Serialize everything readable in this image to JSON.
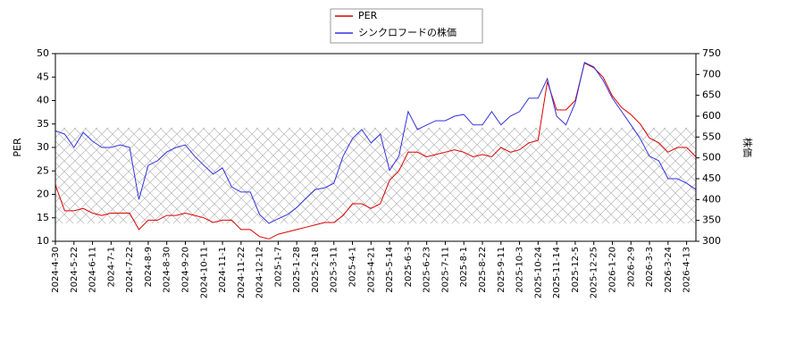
{
  "chart_data": {
    "type": "line",
    "x": [
      "2024-4-30",
      null,
      "2024-5-22",
      null,
      "2024-6-11",
      null,
      "2024-7-1",
      null,
      "2024-7-22",
      null,
      "2024-8-9",
      null,
      "2024-8-30",
      null,
      "2024-9-20",
      null,
      "2024-10-11",
      null,
      "2024-11-1",
      null,
      "2024-11-22",
      null,
      "2024-12-12",
      null,
      "2025-1-7",
      null,
      "2025-1-28",
      null,
      "2025-2-18",
      null,
      "2025-3-11",
      null,
      "2025-4-1",
      null,
      "2025-4-21",
      null,
      "2025-5-14",
      null,
      "2025-6-3",
      null,
      "2025-6-23",
      null,
      "2025-7-11",
      null,
      "2025-8-1",
      null,
      "2025-8-22",
      null,
      "2025-9-11",
      null,
      "2025-10-3",
      null,
      "2025-10-24",
      null,
      "2025-11-14",
      null,
      "2025-12-5",
      null,
      "2025-12-25",
      null,
      "2026-1-20",
      null,
      "2026-2-9",
      null,
      "2026-3-3",
      null,
      "2026-3-24",
      null,
      "2026-4-13",
      null
    ],
    "series": [
      {
        "name": "PER",
        "color": "#dd0000",
        "values": [
          22,
          16.5,
          16.5,
          17,
          16,
          15.5,
          16,
          16,
          16,
          12.5,
          14.5,
          14.5,
          15.5,
          15.5,
          16,
          15.5,
          15,
          14,
          14.5,
          14.5,
          12.5,
          12.5,
          11,
          10.5,
          11.5,
          12,
          12.5,
          13,
          13.5,
          14,
          14,
          15.5,
          18,
          18,
          17,
          18,
          23,
          25,
          29,
          29,
          28,
          28.5,
          29,
          29.5,
          29,
          28,
          28.5,
          28,
          30,
          29,
          29.5,
          31,
          31.5,
          44,
          38,
          38,
          40,
          48,
          47,
          45,
          41,
          38.5,
          37,
          35,
          32,
          31,
          29,
          30,
          30,
          28
        ]
      },
      {
        "name": "シンクロフードの株価",
        "color": "#3333dd",
        "axis": "y2",
        "values": [
          565,
          557,
          525,
          561,
          540,
          525,
          525,
          531,
          525,
          400,
          482,
          493,
          514,
          525,
          531,
          504,
          482,
          461,
          476,
          430,
          418,
          418,
          364,
          343,
          354,
          364,
          381,
          403,
          424,
          428,
          439,
          504,
          546,
          568,
          536,
          557,
          470,
          504,
          611,
          568,
          579,
          589,
          589,
          600,
          604,
          579,
          579,
          611,
          579,
          600,
          611,
          643,
          643,
          690,
          600,
          579,
          632,
          729,
          718,
          686,
          643,
          611,
          579,
          546,
          504,
          493,
          450,
          450,
          439,
          424
        ]
      }
    ],
    "band": [
      13.8,
      34.2
    ],
    "ylabel": "PER",
    "y2label": "株価",
    "ylim": [
      10,
      50
    ],
    "yticks": [
      10,
      15,
      20,
      25,
      30,
      35,
      40,
      45,
      50
    ],
    "y2lim": [
      300,
      750
    ],
    "y2ticks": [
      300,
      350,
      400,
      450,
      500,
      550,
      600,
      650,
      700,
      750
    ],
    "legend": "top"
  }
}
